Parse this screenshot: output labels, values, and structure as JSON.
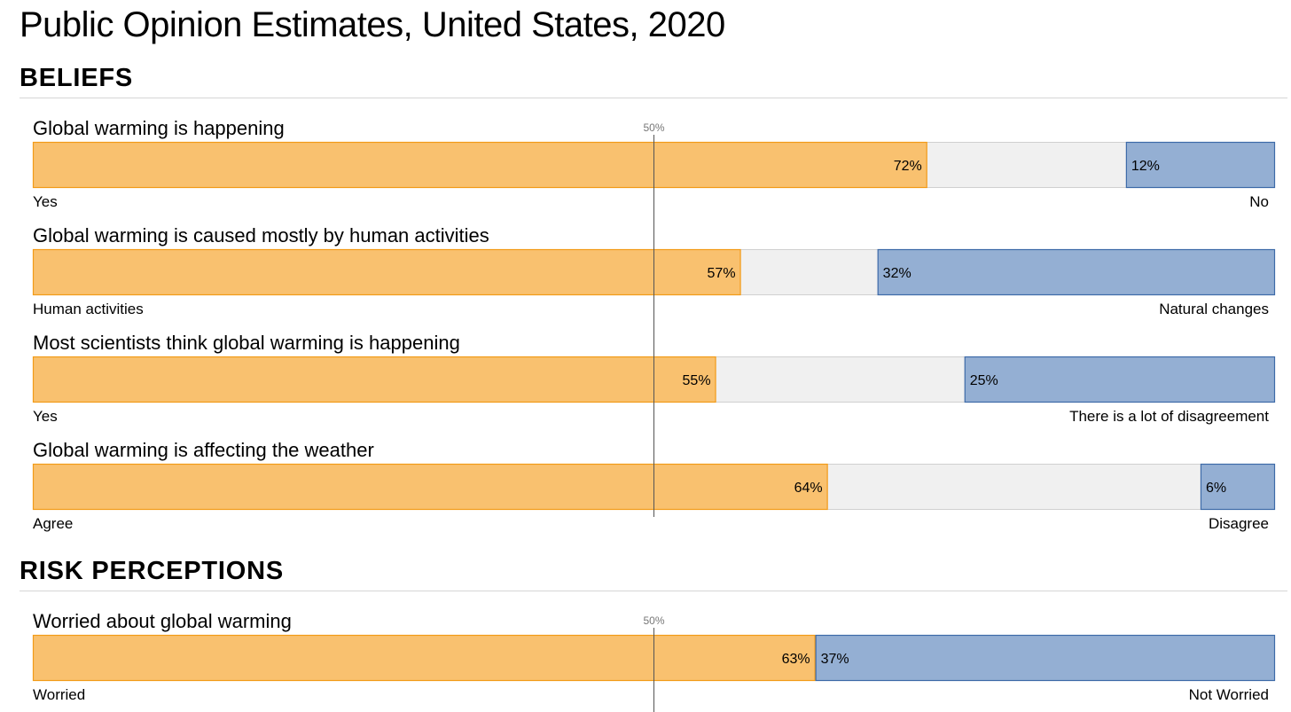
{
  "page": {
    "title": "Public Opinion Estimates, United States, 2020"
  },
  "sections": [
    {
      "heading": "BELIEFS"
    },
    {
      "heading": "RISK PERCEPTIONS"
    }
  ],
  "colors": {
    "positive_fill": "#f9c16f",
    "positive_stroke": "#f29b18",
    "negative_fill": "#94afd3",
    "negative_stroke": "#3d6aa8",
    "neutral_fill": "#f0f0f0",
    "neutral_stroke": "#d0d0d0",
    "midline": "#555555"
  },
  "chart_data": {
    "type": "bar",
    "orientation": "horizontal-stacked",
    "reference_line": {
      "value": 50,
      "label": "50%"
    },
    "xlim": [
      0,
      100
    ],
    "series": [
      {
        "section": 0,
        "question": "Global warming is happening",
        "left_label": "Yes",
        "left_value": 72,
        "left_text": "72%",
        "right_label": "No",
        "right_value": 12,
        "right_text": "12%"
      },
      {
        "section": 0,
        "question": "Global warming is caused mostly by human activities",
        "left_label": "Human activities",
        "left_value": 57,
        "left_text": "57%",
        "right_label": "Natural changes",
        "right_value": 32,
        "right_text": "32%"
      },
      {
        "section": 0,
        "question": "Most scientists think global warming is happening",
        "left_label": "Yes",
        "left_value": 55,
        "left_text": "55%",
        "right_label": "There is a lot of disagreement",
        "right_value": 25,
        "right_text": "25%"
      },
      {
        "section": 0,
        "question": "Global warming is affecting the weather",
        "left_label": "Agree",
        "left_value": 64,
        "left_text": "64%",
        "right_label": "Disagree",
        "right_value": 6,
        "right_text": "6%"
      },
      {
        "section": 1,
        "question": "Worried about global warming",
        "left_label": "Worried",
        "left_value": 63,
        "left_text": "63%",
        "right_label": "Not Worried",
        "right_value": 37,
        "right_text": "37%"
      }
    ]
  }
}
